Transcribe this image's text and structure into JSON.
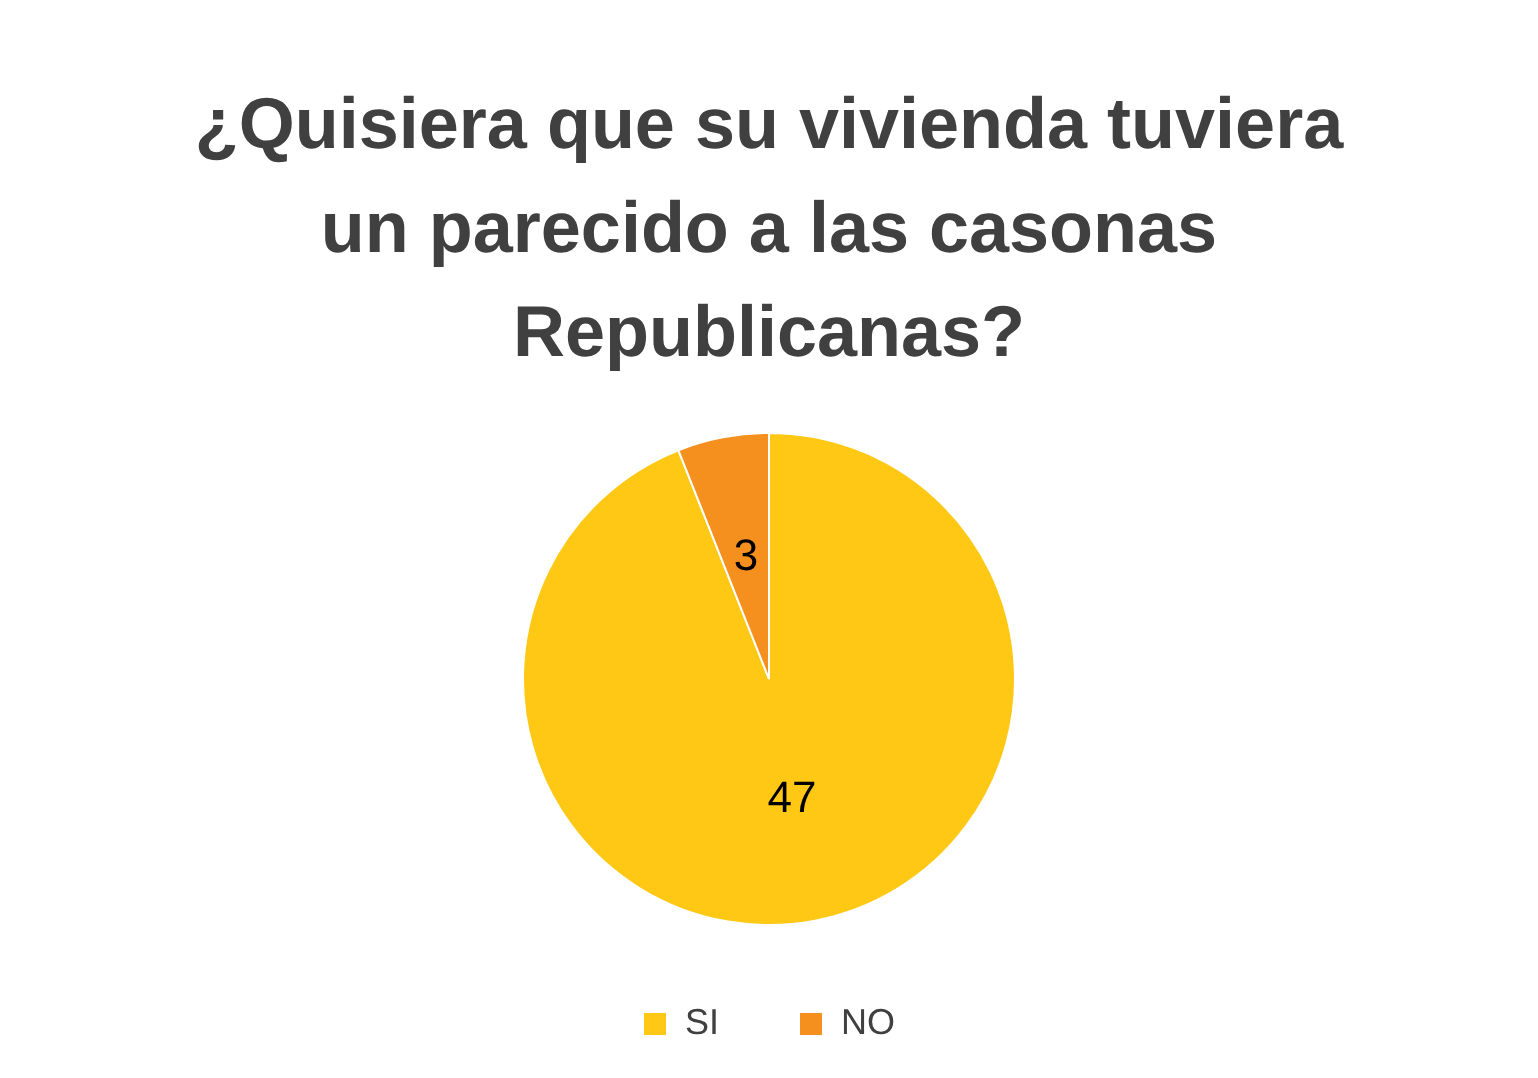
{
  "chart_data": {
    "type": "pie",
    "title": "¿Quisiera que su vivienda tuviera un parecido a las casonas Republicanas?",
    "categories": [
      "SI",
      "NO"
    ],
    "values": [
      47,
      3
    ],
    "colors": [
      "#ffc815",
      "#f5901e"
    ],
    "data_labels": true,
    "legend": "bottom"
  }
}
